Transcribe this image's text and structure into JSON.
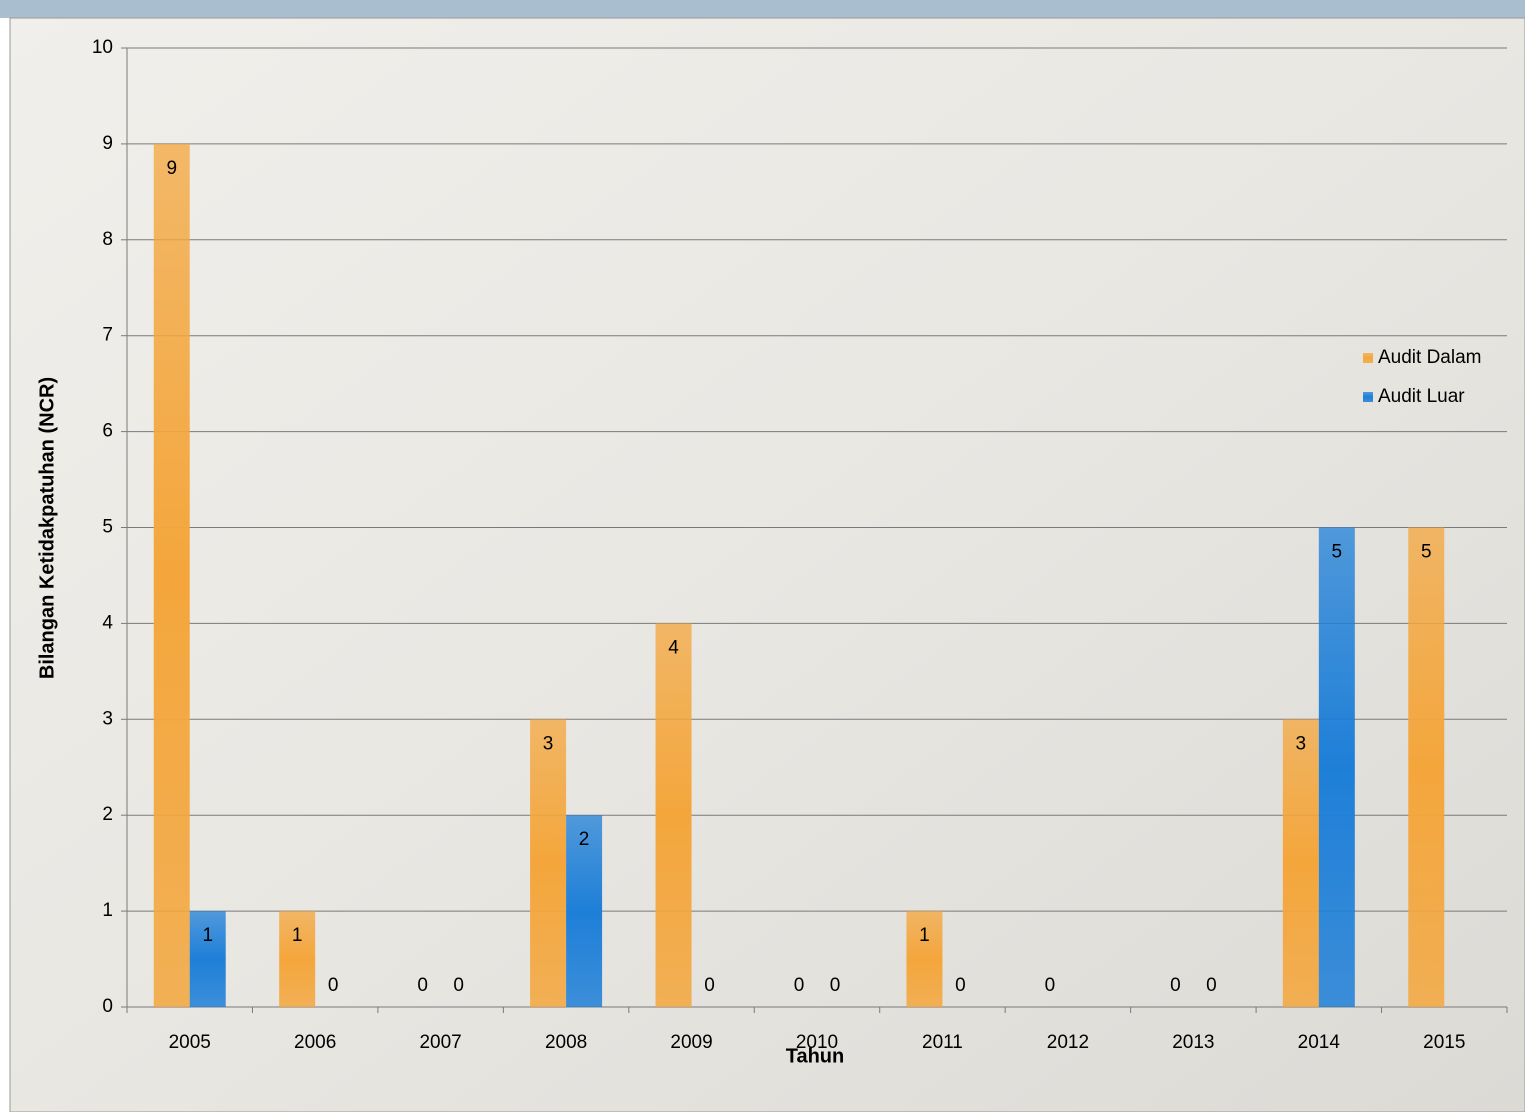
{
  "chart_data": {
    "type": "bar",
    "y_label": "Bilangan Ketidakpatuhan (NCR)",
    "x_label": "Tahun",
    "categories": [
      "2005",
      "2006",
      "2007",
      "2008",
      "2009",
      "2010",
      "2011",
      "2012",
      "2013",
      "2014",
      "2015"
    ],
    "series": [
      {
        "name": "Audit Dalam",
        "color": "#f4a63c",
        "values": [
          9,
          1,
          0,
          3,
          4,
          0,
          1,
          0,
          0,
          3,
          5
        ]
      },
      {
        "name": "Audit Luar",
        "color": "#1e7fd8",
        "values": [
          1,
          0,
          0,
          2,
          0,
          0,
          0,
          null,
          0,
          5,
          null
        ]
      }
    ],
    "ylim": [
      0,
      10
    ],
    "yticks": [
      0,
      1,
      2,
      3,
      4,
      5,
      6,
      7,
      8,
      9,
      10
    ],
    "grid": true,
    "legend": "right"
  }
}
